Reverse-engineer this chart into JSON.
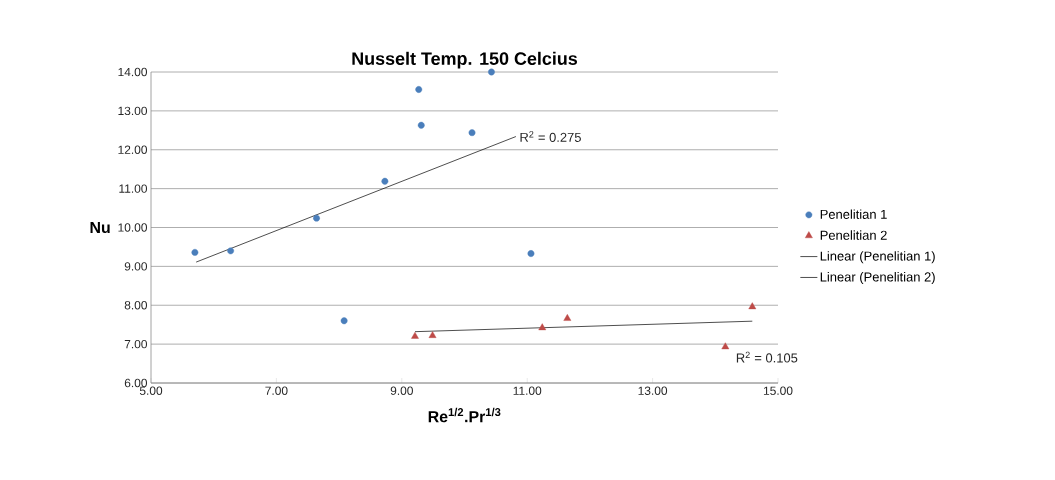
{
  "chart_data": {
    "type": "scatter",
    "title": "Nusselt Temp. 150 Celcius",
    "xlabel": "Re$^{1/2}$.Pr$^{1/3}$",
    "ylabel": "Nu",
    "xlim": [
      5,
      15
    ],
    "ylim": [
      6,
      14
    ],
    "xticks": [
      {
        "value": 5,
        "label": "5.00"
      },
      {
        "value": 7,
        "label": "7.00"
      },
      {
        "value": 9,
        "label": "9.00"
      },
      {
        "value": 11,
        "label": "11.00"
      },
      {
        "value": 13,
        "label": "13.00"
      },
      {
        "value": 15,
        "label": "15.00"
      }
    ],
    "yticks": [
      {
        "value": 6,
        "label": "6.00"
      },
      {
        "value": 7,
        "label": "7.00"
      },
      {
        "value": 8,
        "label": "8.00"
      },
      {
        "value": 9,
        "label": "9.00"
      },
      {
        "value": 10,
        "label": "10.00"
      },
      {
        "value": 11,
        "label": "11.00"
      },
      {
        "value": 12,
        "label": "12.00"
      },
      {
        "value": 13,
        "label": "13.00"
      },
      {
        "value": 14,
        "label": "14.00"
      }
    ],
    "grid": "y",
    "legend": "right",
    "series": [
      {
        "name": "Penelitian 1",
        "marker": "circle",
        "color": "#4a7ebb",
        "x": [
          5.7,
          6.27,
          7.64,
          8.73,
          9.27,
          9.31,
          10.12,
          10.43,
          11.06,
          8.08
        ],
        "values": [
          9.36,
          9.4,
          10.24,
          11.19,
          13.55,
          12.63,
          12.44,
          14.0,
          9.33,
          7.6
        ]
      },
      {
        "name": "Penelitian 2",
        "marker": "triangle",
        "color": "#be4b48",
        "x": [
          9.21,
          9.49,
          11.24,
          11.64,
          14.16,
          14.59
        ],
        "values": [
          7.2,
          7.22,
          7.42,
          7.66,
          6.93,
          7.96
        ]
      },
      {
        "name": "Linear (Penelitian 1)",
        "type": "line",
        "marker": "none",
        "color": "#000000",
        "x": [
          5.72,
          10.82
        ],
        "values": [
          9.11,
          12.34
        ]
      },
      {
        "name": "Linear (Penelitian 2)",
        "type": "line",
        "marker": "none",
        "color": "#000000",
        "x": [
          9.21,
          14.59
        ],
        "values": [
          7.32,
          7.59
        ]
      }
    ],
    "annotations": [
      "R$^{2}$ = 0.275",
      "R$^{2}$ = 0.105"
    ]
  }
}
